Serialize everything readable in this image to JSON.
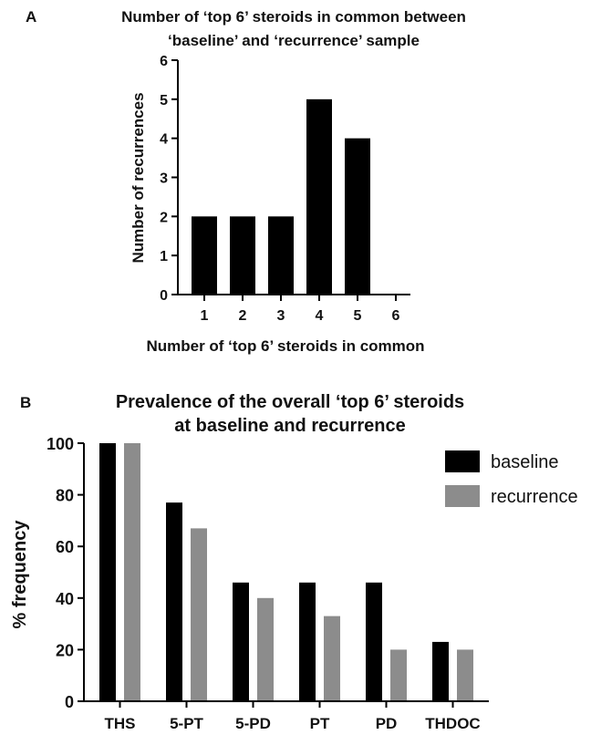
{
  "chart_data": [
    {
      "panel_label": "A",
      "type": "bar",
      "title_lines": [
        "Number of ‘top 6’ steroids in common between",
        "‘baseline’ and ‘recurrence’ sample"
      ],
      "xlabel": "Number of ‘top 6’ steroids in common",
      "ylabel": "Number of recurrences",
      "categories": [
        "1",
        "2",
        "3",
        "4",
        "5",
        "6"
      ],
      "values": [
        2,
        2,
        2,
        5,
        4,
        0
      ],
      "ylim": [
        0,
        6
      ],
      "yticks": [
        0,
        1,
        2,
        3,
        4,
        5,
        6
      ],
      "bar_color": "#000000",
      "grid": false
    },
    {
      "panel_label": "B",
      "type": "bar",
      "title_lines": [
        "Prevalence of the overall ‘top 6’ steroids",
        "at baseline and recurrence"
      ],
      "xlabel": "",
      "ylabel": "% frequency",
      "categories": [
        "THS",
        "5-PT",
        "5-PD",
        "PT",
        "PD",
        "THDOC"
      ],
      "series": [
        {
          "name": "baseline",
          "values": [
            100,
            77,
            46,
            46,
            46,
            23
          ],
          "color": "#000000"
        },
        {
          "name": "recurrence",
          "values": [
            100,
            67,
            40,
            33,
            20,
            20
          ],
          "color": "#8c8c8c"
        }
      ],
      "ylim": [
        0,
        100
      ],
      "yticks": [
        0,
        20,
        40,
        60,
        80,
        100
      ],
      "legend_position": "top-right",
      "grid": false
    }
  ]
}
